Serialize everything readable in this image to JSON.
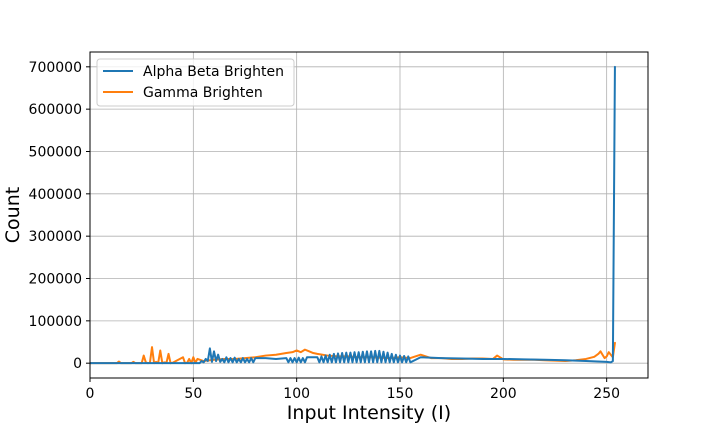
{
  "chart_data": {
    "type": "line",
    "xlabel": "Input Intensity (I)",
    "ylabel": "Count",
    "xlim": [
      0,
      270
    ],
    "ylim": [
      -35000,
      735000
    ],
    "xticks": [
      0,
      50,
      100,
      150,
      200,
      250
    ],
    "yticks": [
      0,
      100000,
      200000,
      300000,
      400000,
      500000,
      600000,
      700000
    ],
    "grid": true,
    "legend_position": "top-left",
    "series": [
      {
        "name": "Alpha Beta Brighten",
        "color": "#1f77b4",
        "x": [
          0,
          10,
          14,
          15,
          20,
          21,
          30,
          40,
          50,
          53,
          54,
          55,
          56,
          57,
          58,
          59,
          60,
          61,
          62,
          63,
          64,
          65,
          66,
          67,
          68,
          69,
          70,
          71,
          72,
          73,
          74,
          75,
          76,
          77,
          78,
          79,
          80,
          85,
          90,
          95,
          96,
          97,
          98,
          99,
          100,
          101,
          102,
          103,
          104,
          105,
          110,
          111,
          112,
          113,
          114,
          115,
          116,
          117,
          118,
          119,
          120,
          121,
          122,
          123,
          124,
          125,
          126,
          127,
          128,
          129,
          130,
          131,
          132,
          133,
          134,
          135,
          136,
          137,
          138,
          139,
          140,
          141,
          142,
          143,
          144,
          145,
          146,
          147,
          148,
          149,
          150,
          151,
          152,
          153,
          154,
          155,
          160,
          170,
          180,
          190,
          200,
          210,
          220,
          230,
          240,
          250,
          252,
          253,
          254
        ],
        "y": [
          0,
          0,
          0,
          0,
          0,
          0,
          0,
          0,
          0,
          0,
          5000,
          2000,
          10000,
          5000,
          35000,
          3000,
          28000,
          5000,
          20000,
          3000,
          10000,
          2000,
          14000,
          2000,
          12000,
          2000,
          13000,
          2000,
          10000,
          2000,
          12000,
          2000,
          10000,
          2000,
          12000,
          2000,
          12000,
          12000,
          10000,
          12000,
          2000,
          12000,
          2000,
          12000,
          2000,
          13000,
          2000,
          12000,
          2000,
          14000,
          14000,
          2000,
          16000,
          2000,
          18000,
          2000,
          20000,
          2000,
          22000,
          2000,
          23000,
          2000,
          24000,
          2000,
          25000,
          2000,
          25000,
          2000,
          26000,
          2000,
          26000,
          2000,
          27000,
          2000,
          28000,
          2000,
          28000,
          2000,
          29000,
          2000,
          29000,
          2000,
          27000,
          2000,
          25000,
          2000,
          22000,
          2000,
          20000,
          2000,
          18000,
          2000,
          17000,
          2000,
          16000,
          2000,
          14000,
          12000,
          11000,
          10000,
          10000,
          9000,
          8000,
          7000,
          5000,
          3000,
          2000,
          5000,
          700000
        ]
      },
      {
        "name": "Gamma Brighten",
        "color": "#ff7f0e",
        "x": [
          0,
          10,
          13,
          14,
          15,
          20,
          21,
          22,
          25,
          26,
          27,
          28,
          29,
          30,
          31,
          32,
          33,
          34,
          35,
          36,
          37,
          38,
          39,
          40,
          45,
          46,
          47,
          48,
          49,
          50,
          51,
          52,
          55,
          60,
          65,
          70,
          75,
          80,
          85,
          90,
          95,
          98,
          100,
          102,
          104,
          106,
          108,
          110,
          115,
          120,
          125,
          130,
          135,
          140,
          145,
          150,
          155,
          160,
          165,
          170,
          175,
          180,
          185,
          190,
          195,
          197,
          200,
          205,
          210,
          215,
          220,
          225,
          230,
          235,
          240,
          244,
          246,
          247,
          248,
          249,
          250,
          251,
          252,
          253,
          254
        ],
        "y": [
          0,
          0,
          0,
          4000,
          0,
          0,
          3000,
          0,
          0,
          18000,
          2000,
          0,
          1000,
          38000,
          0,
          3000,
          1000,
          30000,
          0,
          2000,
          1000,
          22000,
          0,
          1000,
          14000,
          0,
          1000,
          10000,
          0,
          14000,
          1000,
          10000,
          5000,
          8000,
          10000,
          10000,
          12000,
          14000,
          18000,
          20000,
          24000,
          26000,
          30000,
          26000,
          32000,
          28000,
          24000,
          22000,
          18000,
          16000,
          16000,
          14000,
          14000,
          13000,
          12000,
          14000,
          12000,
          20000,
          12000,
          12000,
          10000,
          10000,
          11000,
          11000,
          10000,
          18000,
          9000,
          8000,
          8000,
          8000,
          7000,
          6000,
          5000,
          7000,
          10000,
          15000,
          22000,
          28000,
          20000,
          12000,
          16000,
          26000,
          20000,
          14000,
          48000
        ]
      }
    ]
  }
}
